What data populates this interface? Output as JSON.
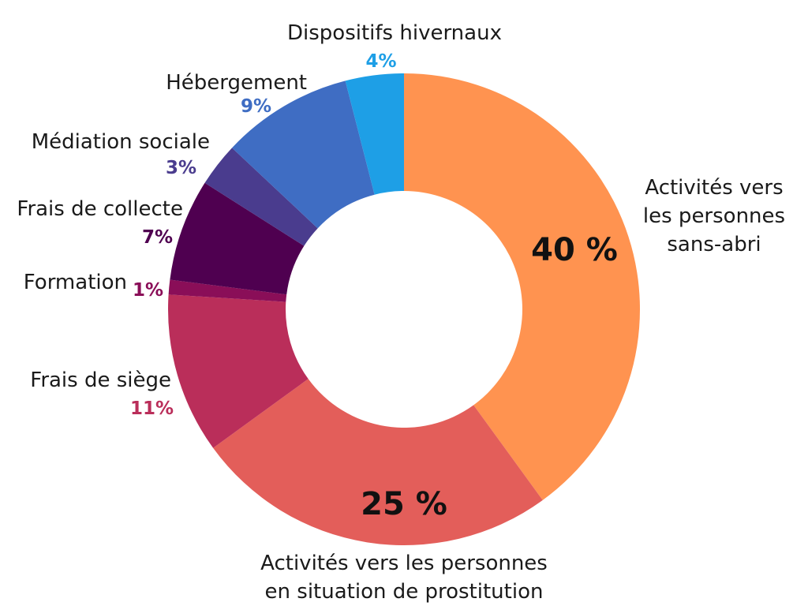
{
  "chart_data": {
    "type": "pie",
    "donut": true,
    "units": "%",
    "slices": [
      {
        "key": "sans-abri",
        "label_lines": [
          "Activités vers",
          "les personnes",
          "sans-abri"
        ],
        "value": 40,
        "value_label": "40 %",
        "color": "#FF9350"
      },
      {
        "key": "prostitution",
        "label_lines": [
          "Activités vers les personnes",
          "en situation de prostitution"
        ],
        "value": 25,
        "value_label": "25 %",
        "color": "#E35E5A"
      },
      {
        "key": "siege",
        "label_lines": [
          "Frais de siège"
        ],
        "value": 11,
        "value_label": "11%",
        "color": "#BA2E5A"
      },
      {
        "key": "formation",
        "label_lines": [
          "Formation"
        ],
        "value": 1,
        "value_label": "1%",
        "color": "#8A0E58"
      },
      {
        "key": "collecte",
        "label_lines": [
          "Frais de collecte"
        ],
        "value": 7,
        "value_label": "7%",
        "color": "#4F0050"
      },
      {
        "key": "mediation",
        "label_lines": [
          "Médiation sociale"
        ],
        "value": 3,
        "value_label": "3%",
        "color": "#4A3C8E"
      },
      {
        "key": "hebergement",
        "label_lines": [
          "Hébergement"
        ],
        "value": 9,
        "value_label": "9%",
        "color": "#3F6DC3"
      },
      {
        "key": "hivernaux",
        "label_lines": [
          "Dispositifs hivernaux"
        ],
        "value": 4,
        "value_label": "4%",
        "color": "#1E9FE6"
      }
    ]
  }
}
